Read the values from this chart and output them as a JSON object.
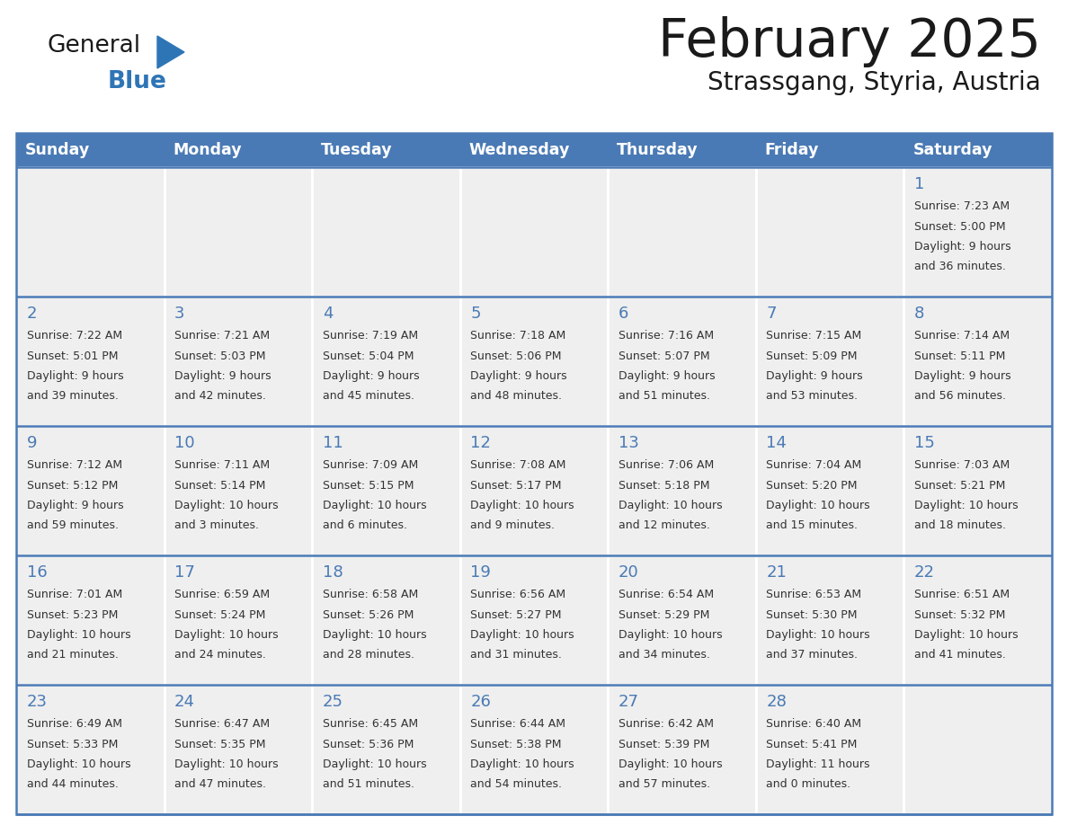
{
  "title": "February 2025",
  "subtitle": "Strassgang, Styria, Austria",
  "days_of_week": [
    "Sunday",
    "Monday",
    "Tuesday",
    "Wednesday",
    "Thursday",
    "Friday",
    "Saturday"
  ],
  "header_bg": "#4a7ab5",
  "header_text": "#ffffff",
  "cell_bg": "#efefef",
  "border_color": "#4a7ab5",
  "day_number_color": "#4a7ab5",
  "text_color": "#333333",
  "title_color": "#1a1a1a",
  "logo_general_color": "#1a1a1a",
  "logo_blue_color": "#2e75b6",
  "calendar_data": [
    [
      null,
      null,
      null,
      null,
      null,
      null,
      {
        "day": 1,
        "sunrise": "7:23 AM",
        "sunset": "5:00 PM",
        "daylight": "9 hours",
        "daylight2": "and 36 minutes."
      }
    ],
    [
      {
        "day": 2,
        "sunrise": "7:22 AM",
        "sunset": "5:01 PM",
        "daylight": "9 hours",
        "daylight2": "and 39 minutes."
      },
      {
        "day": 3,
        "sunrise": "7:21 AM",
        "sunset": "5:03 PM",
        "daylight": "9 hours",
        "daylight2": "and 42 minutes."
      },
      {
        "day": 4,
        "sunrise": "7:19 AM",
        "sunset": "5:04 PM",
        "daylight": "9 hours",
        "daylight2": "and 45 minutes."
      },
      {
        "day": 5,
        "sunrise": "7:18 AM",
        "sunset": "5:06 PM",
        "daylight": "9 hours",
        "daylight2": "and 48 minutes."
      },
      {
        "day": 6,
        "sunrise": "7:16 AM",
        "sunset": "5:07 PM",
        "daylight": "9 hours",
        "daylight2": "and 51 minutes."
      },
      {
        "day": 7,
        "sunrise": "7:15 AM",
        "sunset": "5:09 PM",
        "daylight": "9 hours",
        "daylight2": "and 53 minutes."
      },
      {
        "day": 8,
        "sunrise": "7:14 AM",
        "sunset": "5:11 PM",
        "daylight": "9 hours",
        "daylight2": "and 56 minutes."
      }
    ],
    [
      {
        "day": 9,
        "sunrise": "7:12 AM",
        "sunset": "5:12 PM",
        "daylight": "9 hours",
        "daylight2": "and 59 minutes."
      },
      {
        "day": 10,
        "sunrise": "7:11 AM",
        "sunset": "5:14 PM",
        "daylight": "10 hours",
        "daylight2": "and 3 minutes."
      },
      {
        "day": 11,
        "sunrise": "7:09 AM",
        "sunset": "5:15 PM",
        "daylight": "10 hours",
        "daylight2": "and 6 minutes."
      },
      {
        "day": 12,
        "sunrise": "7:08 AM",
        "sunset": "5:17 PM",
        "daylight": "10 hours",
        "daylight2": "and 9 minutes."
      },
      {
        "day": 13,
        "sunrise": "7:06 AM",
        "sunset": "5:18 PM",
        "daylight": "10 hours",
        "daylight2": "and 12 minutes."
      },
      {
        "day": 14,
        "sunrise": "7:04 AM",
        "sunset": "5:20 PM",
        "daylight": "10 hours",
        "daylight2": "and 15 minutes."
      },
      {
        "day": 15,
        "sunrise": "7:03 AM",
        "sunset": "5:21 PM",
        "daylight": "10 hours",
        "daylight2": "and 18 minutes."
      }
    ],
    [
      {
        "day": 16,
        "sunrise": "7:01 AM",
        "sunset": "5:23 PM",
        "daylight": "10 hours",
        "daylight2": "and 21 minutes."
      },
      {
        "day": 17,
        "sunrise": "6:59 AM",
        "sunset": "5:24 PM",
        "daylight": "10 hours",
        "daylight2": "and 24 minutes."
      },
      {
        "day": 18,
        "sunrise": "6:58 AM",
        "sunset": "5:26 PM",
        "daylight": "10 hours",
        "daylight2": "and 28 minutes."
      },
      {
        "day": 19,
        "sunrise": "6:56 AM",
        "sunset": "5:27 PM",
        "daylight": "10 hours",
        "daylight2": "and 31 minutes."
      },
      {
        "day": 20,
        "sunrise": "6:54 AM",
        "sunset": "5:29 PM",
        "daylight": "10 hours",
        "daylight2": "and 34 minutes."
      },
      {
        "day": 21,
        "sunrise": "6:53 AM",
        "sunset": "5:30 PM",
        "daylight": "10 hours",
        "daylight2": "and 37 minutes."
      },
      {
        "day": 22,
        "sunrise": "6:51 AM",
        "sunset": "5:32 PM",
        "daylight": "10 hours",
        "daylight2": "and 41 minutes."
      }
    ],
    [
      {
        "day": 23,
        "sunrise": "6:49 AM",
        "sunset": "5:33 PM",
        "daylight": "10 hours",
        "daylight2": "and 44 minutes."
      },
      {
        "day": 24,
        "sunrise": "6:47 AM",
        "sunset": "5:35 PM",
        "daylight": "10 hours",
        "daylight2": "and 47 minutes."
      },
      {
        "day": 25,
        "sunrise": "6:45 AM",
        "sunset": "5:36 PM",
        "daylight": "10 hours",
        "daylight2": "and 51 minutes."
      },
      {
        "day": 26,
        "sunrise": "6:44 AM",
        "sunset": "5:38 PM",
        "daylight": "10 hours",
        "daylight2": "and 54 minutes."
      },
      {
        "day": 27,
        "sunrise": "6:42 AM",
        "sunset": "5:39 PM",
        "daylight": "10 hours",
        "daylight2": "and 57 minutes."
      },
      {
        "day": 28,
        "sunrise": "6:40 AM",
        "sunset": "5:41 PM",
        "daylight": "11 hours",
        "daylight2": "and 0 minutes."
      },
      null
    ]
  ]
}
